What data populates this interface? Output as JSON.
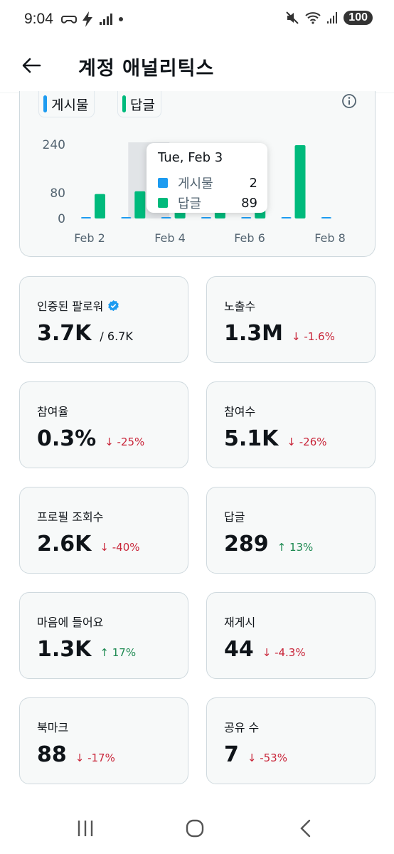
{
  "status_bar": {
    "time": "9:04",
    "battery": "100",
    "icons": [
      "game-controller-icon",
      "bolt-icon",
      "signal-icon",
      "dot-icon",
      "mute-icon",
      "wifi-icon",
      "cell-signal-icon"
    ]
  },
  "header": {
    "back_icon": "arrow-left-icon",
    "title": "계정 애널리틱스"
  },
  "chart": {
    "legend": [
      {
        "label": "게시물",
        "color": "#1d9bf0"
      },
      {
        "label": "답글",
        "color": "#00ba7c"
      }
    ],
    "info_icon": "info-icon",
    "tooltip": {
      "date": "Tue, Feb 3",
      "rows": [
        {
          "label": "게시물",
          "value": "2",
          "color": "#1d9bf0"
        },
        {
          "label": "답글",
          "value": "89",
          "color": "#00ba7c"
        }
      ]
    }
  },
  "chart_data": {
    "type": "bar",
    "categories": [
      "Feb 2",
      "Feb 3",
      "Feb 4",
      "Feb 5",
      "Feb 6",
      "Feb 7",
      "Feb 8"
    ],
    "x_tick_labels": [
      "Feb 2",
      "Feb 4",
      "Feb 6",
      "Feb 8"
    ],
    "y_tick_labels": [
      "240",
      "80",
      "0"
    ],
    "y_ticks": [
      240,
      80,
      0
    ],
    "ylim": [
      0,
      240
    ],
    "series": [
      {
        "name": "게시물",
        "color": "#1d9bf0",
        "values": [
          1,
          2,
          1,
          1,
          1,
          1,
          1
        ]
      },
      {
        "name": "답글",
        "color": "#00ba7c",
        "values": [
          80,
          89,
          90,
          88,
          90,
          240,
          0
        ]
      }
    ],
    "highlighted_category": "Feb 3",
    "grid": false,
    "legend_position": "top-left"
  },
  "metrics": [
    {
      "label": "인증된 팔로워",
      "verified_icon": "verified-badge-icon",
      "value": "3.7K",
      "extra": "/ 6.7K",
      "delta": "",
      "direction": ""
    },
    {
      "label": "노출수",
      "value": "1.3M",
      "extra": "",
      "delta": "↓ -1.6%",
      "direction": "down"
    },
    {
      "label": "참여율",
      "value": "0.3%",
      "extra": "",
      "delta": "↓ -25%",
      "direction": "down"
    },
    {
      "label": "참여수",
      "value": "5.1K",
      "extra": "",
      "delta": "↓ -26%",
      "direction": "down"
    },
    {
      "label": "프로필 조회수",
      "value": "2.6K",
      "extra": "",
      "delta": "↓ -40%",
      "direction": "down"
    },
    {
      "label": "답글",
      "value": "289",
      "extra": "",
      "delta": "↑ 13%",
      "direction": "up"
    },
    {
      "label": "마음에 들어요",
      "value": "1.3K",
      "extra": "",
      "delta": "↑ 17%",
      "direction": "up"
    },
    {
      "label": "재게시",
      "value": "44",
      "extra": "",
      "delta": "↓ -4.3%",
      "direction": "down"
    },
    {
      "label": "북마크",
      "value": "88",
      "extra": "",
      "delta": "↓ -17%",
      "direction": "down"
    },
    {
      "label": "공유 수",
      "value": "7",
      "extra": "",
      "delta": "↓ -53%",
      "direction": "down"
    }
  ],
  "nav_bar": {
    "icons": [
      "recent-apps-icon",
      "home-icon",
      "back-icon"
    ]
  }
}
